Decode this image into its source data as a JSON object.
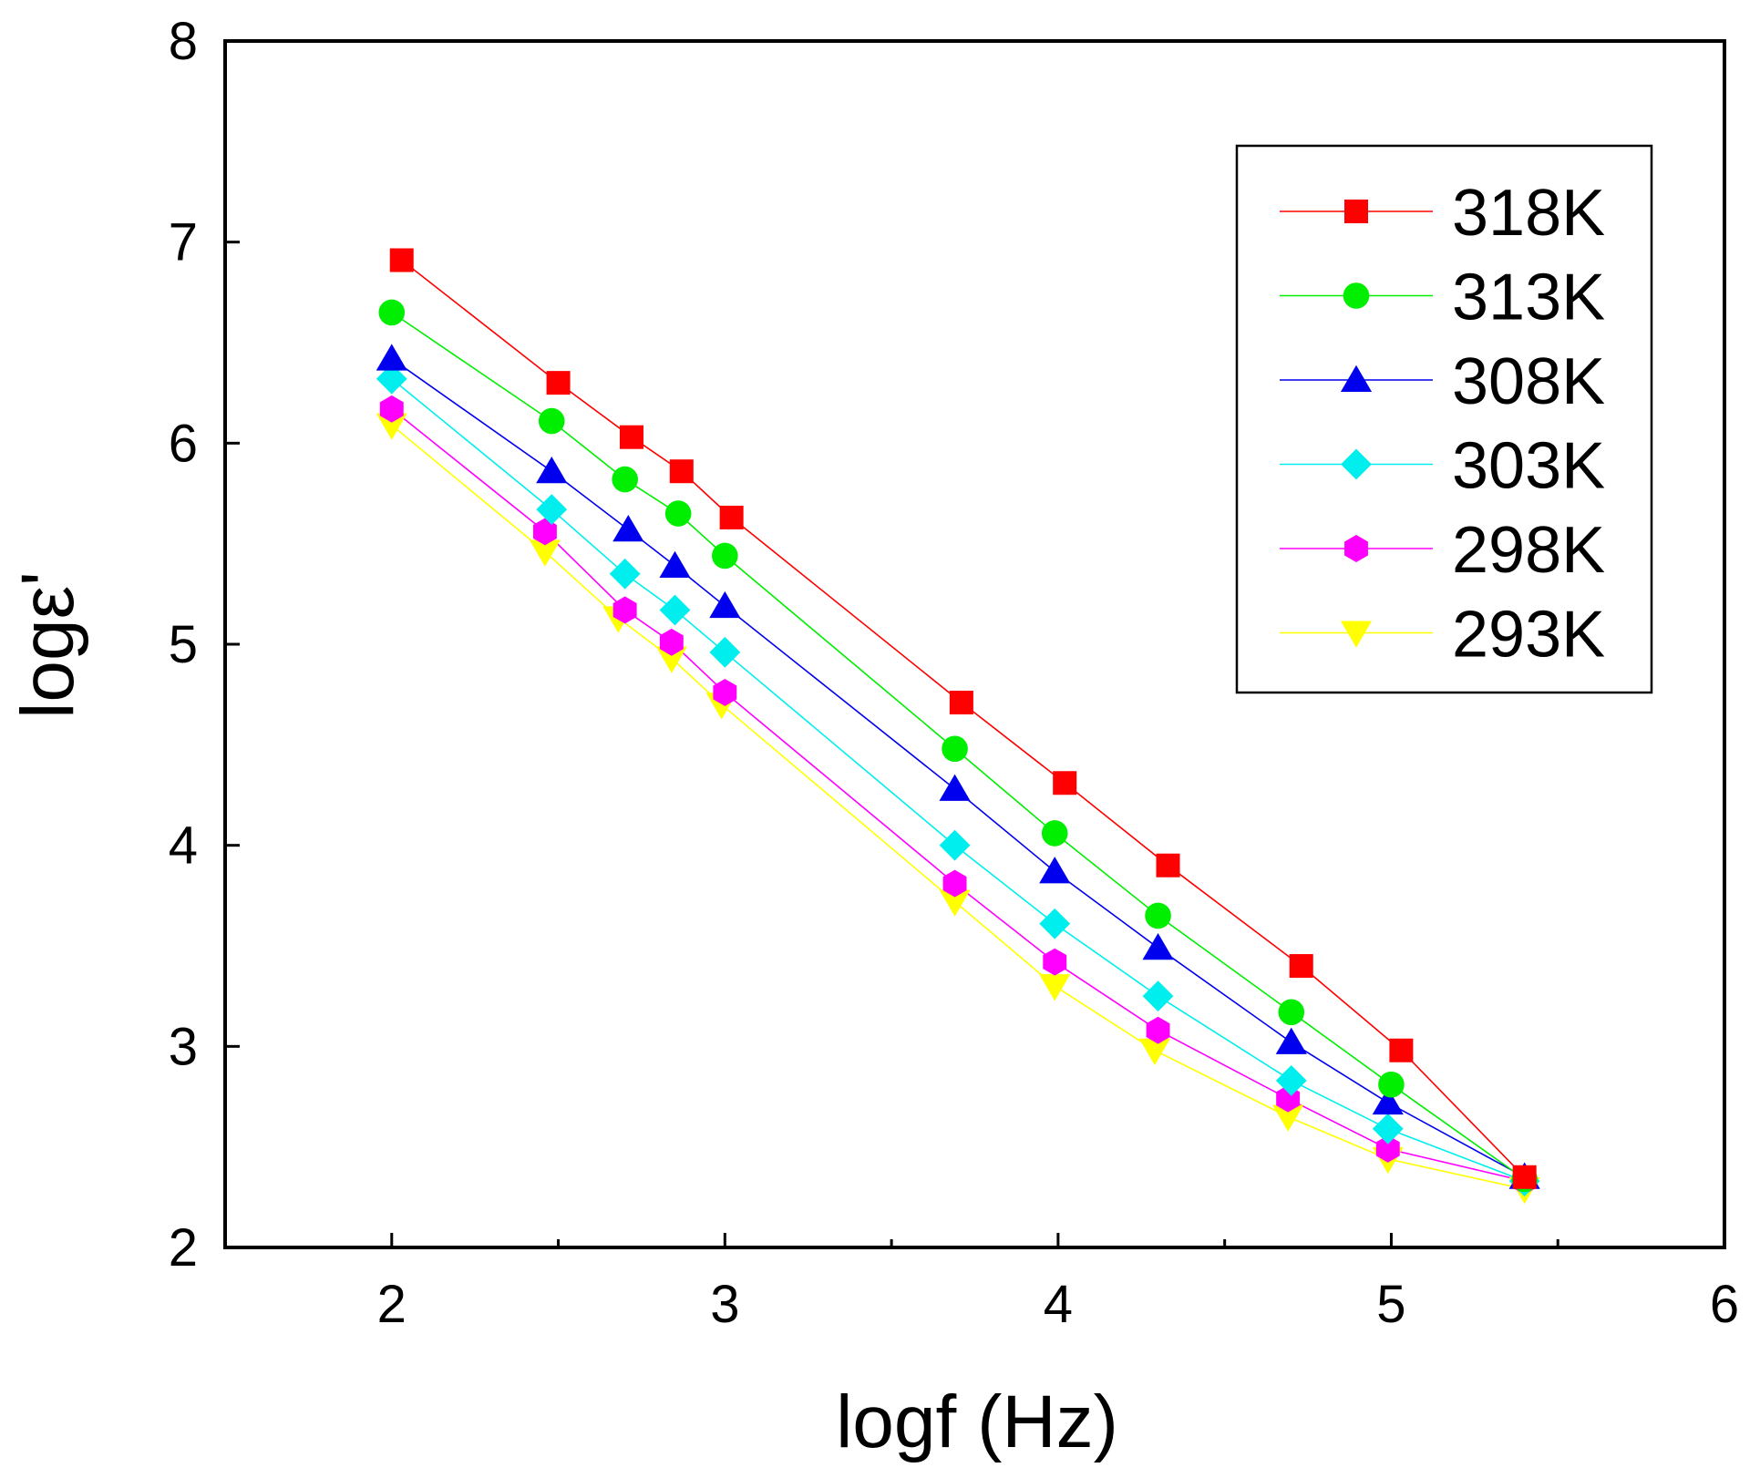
{
  "chart_data": {
    "type": "line",
    "title": "",
    "xlabel": "logf (Hz)",
    "ylabel": "logε'",
    "xlim": [
      1.5,
      6
    ],
    "ylim": [
      2,
      8
    ],
    "xticks": [
      2,
      3,
      4,
      5,
      6
    ],
    "xticks_minor": [
      2.5,
      3.5,
      4.5,
      5.5
    ],
    "yticks": [
      2,
      3,
      4,
      5,
      6,
      7,
      8
    ],
    "grid": false,
    "legend_position": "top-right",
    "series": [
      {
        "name": "318K",
        "color": "#ff0000",
        "marker": "square",
        "points": [
          [
            2.03,
            6.91
          ],
          [
            2.5,
            6.3
          ],
          [
            2.72,
            6.03
          ],
          [
            2.87,
            5.86
          ],
          [
            3.02,
            5.63
          ],
          [
            3.71,
            4.71
          ],
          [
            4.02,
            4.31
          ],
          [
            4.33,
            3.9
          ],
          [
            4.73,
            3.4
          ],
          [
            5.03,
            2.98
          ],
          [
            5.4,
            2.35
          ]
        ]
      },
      {
        "name": "313K",
        "color": "#00ee00",
        "marker": "circle",
        "points": [
          [
            2.0,
            6.65
          ],
          [
            2.48,
            6.11
          ],
          [
            2.7,
            5.82
          ],
          [
            2.86,
            5.65
          ],
          [
            3.0,
            5.44
          ],
          [
            3.69,
            4.48
          ],
          [
            3.99,
            4.06
          ],
          [
            4.3,
            3.65
          ],
          [
            4.7,
            3.17
          ],
          [
            5.0,
            2.81
          ],
          [
            5.4,
            2.34
          ]
        ]
      },
      {
        "name": "308K",
        "color": "#0000ee",
        "marker": "triangle-up",
        "points": [
          [
            2.0,
            6.42
          ],
          [
            2.48,
            5.86
          ],
          [
            2.71,
            5.57
          ],
          [
            2.85,
            5.39
          ],
          [
            3.0,
            5.19
          ],
          [
            3.69,
            4.28
          ],
          [
            3.99,
            3.87
          ],
          [
            4.3,
            3.49
          ],
          [
            4.7,
            3.02
          ],
          [
            4.99,
            2.72
          ],
          [
            5.4,
            2.35
          ]
        ]
      },
      {
        "name": "303K",
        "color": "#00eeee",
        "marker": "diamond",
        "points": [
          [
            2.0,
            6.32
          ],
          [
            2.48,
            5.67
          ],
          [
            2.7,
            5.35
          ],
          [
            2.85,
            5.17
          ],
          [
            3.0,
            4.96
          ],
          [
            3.69,
            4.0
          ],
          [
            3.99,
            3.61
          ],
          [
            4.3,
            3.25
          ],
          [
            4.7,
            2.83
          ],
          [
            4.99,
            2.59
          ],
          [
            5.4,
            2.33
          ]
        ]
      },
      {
        "name": "298K",
        "color": "#ff00ff",
        "marker": "hexagon",
        "points": [
          [
            2.0,
            6.17
          ],
          [
            2.46,
            5.56
          ],
          [
            2.7,
            5.17
          ],
          [
            2.84,
            5.01
          ],
          [
            3.0,
            4.76
          ],
          [
            3.69,
            3.81
          ],
          [
            3.99,
            3.42
          ],
          [
            4.3,
            3.08
          ],
          [
            4.69,
            2.74
          ],
          [
            4.99,
            2.49
          ],
          [
            5.4,
            2.33
          ]
        ]
      },
      {
        "name": "293K",
        "color": "#ffff00",
        "marker": "triangle-down",
        "points": [
          [
            2.0,
            6.09
          ],
          [
            2.46,
            5.46
          ],
          [
            2.68,
            5.13
          ],
          [
            2.84,
            4.93
          ],
          [
            2.99,
            4.7
          ],
          [
            3.69,
            3.72
          ],
          [
            3.99,
            3.3
          ],
          [
            4.29,
            2.98
          ],
          [
            4.69,
            2.65
          ],
          [
            4.99,
            2.44
          ],
          [
            5.4,
            2.29
          ]
        ]
      }
    ]
  }
}
